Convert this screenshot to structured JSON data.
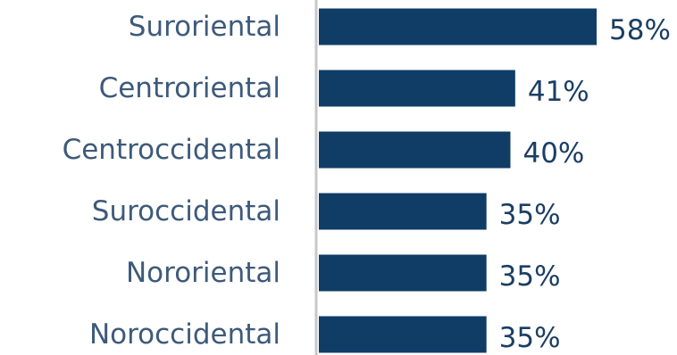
{
  "chart_data": {
    "type": "bar",
    "orientation": "horizontal",
    "categories": [
      "Suroriental",
      "Centroriental",
      "Centroccidental",
      "Suroccidental",
      "Nororiental",
      "Noroccidental"
    ],
    "values": [
      58,
      41,
      40,
      35,
      35,
      35
    ],
    "value_labels": [
      "58%",
      "41%",
      "40%",
      "35%",
      "35%",
      "35%"
    ],
    "unit": "%",
    "xlim": [
      0,
      60
    ],
    "grid": false,
    "legend": "none",
    "colors": {
      "bar": "#0f3d66",
      "category_text": "#3d5a7a",
      "value_text": "#1b3e63",
      "axis": "#c8c8c8"
    }
  }
}
